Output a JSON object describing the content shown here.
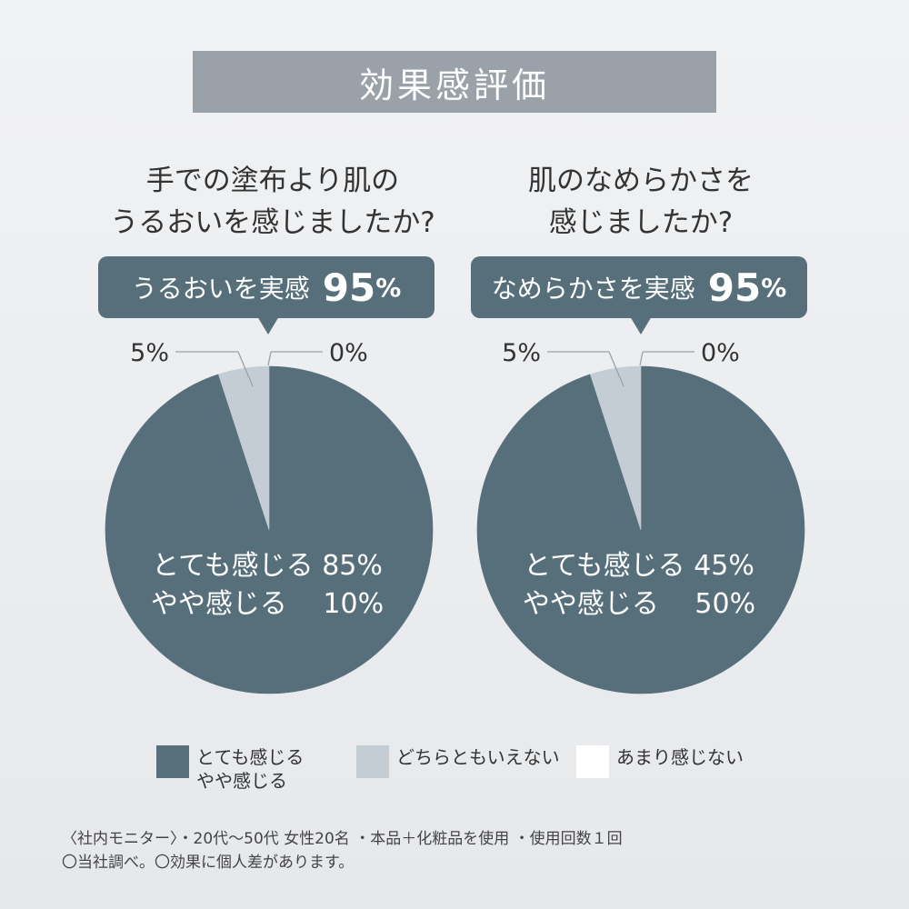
{
  "title": "効果感評価",
  "charts": [
    {
      "question_lines": [
        "手での塗布より肌の",
        "うるおいを感じましたか?"
      ],
      "callout_text": "うるおいを実感",
      "callout_value": "95",
      "callout_unit": "%",
      "label_small_left": "5%",
      "label_small_right": "0%",
      "inner_line1": "とても感じる 85%",
      "inner_line2": "やや感じる　 10%"
    },
    {
      "question_lines": [
        "肌のなめらかさを",
        "感じましたか?"
      ],
      "callout_text": "なめらかさを実感",
      "callout_value": "95",
      "callout_unit": "%",
      "label_small_left": "5%",
      "label_small_right": "0%",
      "inner_line1": "とても感じる 45%",
      "inner_line2": "やや感じる　 50%"
    }
  ],
  "chart_data": [
    {
      "type": "pie",
      "categories": [
        "とても感じる",
        "やや感じる",
        "どちらともいえない",
        "あまり感じない"
      ],
      "values": [
        85,
        10,
        5,
        0
      ]
    },
    {
      "type": "pie",
      "categories": [
        "とても感じる",
        "やや感じる",
        "どちらともいえない",
        "あまり感じない"
      ],
      "values": [
        45,
        50,
        5,
        0
      ]
    }
  ],
  "colors": {
    "main": "#566f7b",
    "neutral": "#c4cdd3",
    "none": "#ffffff",
    "leader": "#9aa1a9"
  },
  "legend": [
    {
      "lines": [
        "とても感じる",
        "やや感じる"
      ],
      "color": "#566f7b"
    },
    {
      "lines": [
        "どちらともいえない"
      ],
      "color": "#c4cdd3"
    },
    {
      "lines": [
        "あまり感じない"
      ],
      "color": "#ffffff"
    }
  ],
  "footnote": [
    "〈社内モニター〉・20代〜50代 女性20名 ・本品＋化粧品を使用 ・使用回数１回",
    "〇当社調べ。〇効果に個人差があります。"
  ]
}
